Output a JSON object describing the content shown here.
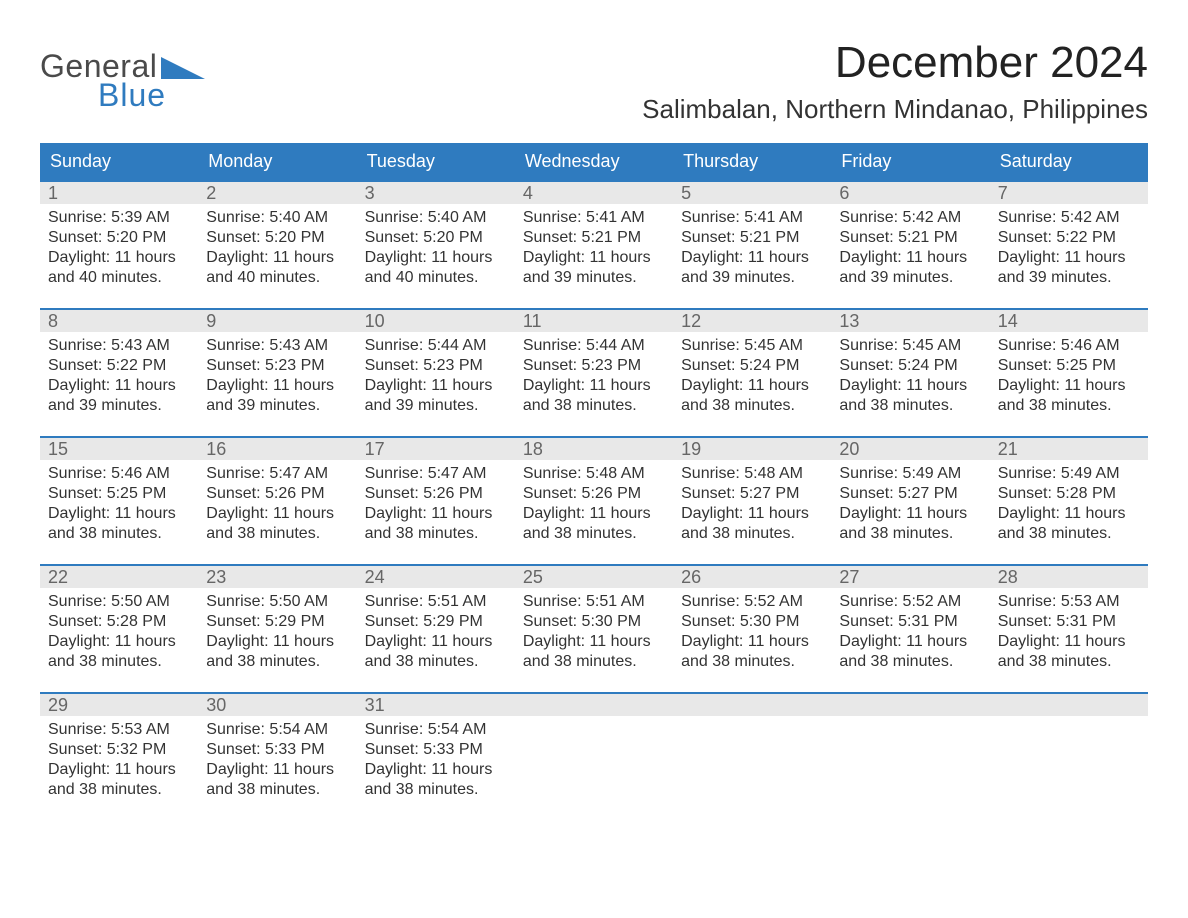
{
  "brand": {
    "word1": "General",
    "word2": "Blue",
    "word1_color": "#4a4a4a",
    "word2_color": "#2f7bbf",
    "triangle_color": "#2f7bbf"
  },
  "title": {
    "month": "December 2024",
    "location": "Salimbalan, Northern Mindanao, Philippines",
    "month_fontsize": 44,
    "location_fontsize": 26,
    "text_color": "#222222"
  },
  "calendar": {
    "header_bg": "#2f7bbf",
    "header_text_color": "#ffffff",
    "daynum_bg": "#e8e8e8",
    "daynum_color": "#666666",
    "row_border_color": "#2f7bbf",
    "body_text_color": "#333333",
    "columns": [
      "Sunday",
      "Monday",
      "Tuesday",
      "Wednesday",
      "Thursday",
      "Friday",
      "Saturday"
    ],
    "weeks": [
      [
        {
          "n": "1",
          "sunrise": "Sunrise: 5:39 AM",
          "sunset": "Sunset: 5:20 PM",
          "d1": "Daylight: 11 hours",
          "d2": "and 40 minutes."
        },
        {
          "n": "2",
          "sunrise": "Sunrise: 5:40 AM",
          "sunset": "Sunset: 5:20 PM",
          "d1": "Daylight: 11 hours",
          "d2": "and 40 minutes."
        },
        {
          "n": "3",
          "sunrise": "Sunrise: 5:40 AM",
          "sunset": "Sunset: 5:20 PM",
          "d1": "Daylight: 11 hours",
          "d2": "and 40 minutes."
        },
        {
          "n": "4",
          "sunrise": "Sunrise: 5:41 AM",
          "sunset": "Sunset: 5:21 PM",
          "d1": "Daylight: 11 hours",
          "d2": "and 39 minutes."
        },
        {
          "n": "5",
          "sunrise": "Sunrise: 5:41 AM",
          "sunset": "Sunset: 5:21 PM",
          "d1": "Daylight: 11 hours",
          "d2": "and 39 minutes."
        },
        {
          "n": "6",
          "sunrise": "Sunrise: 5:42 AM",
          "sunset": "Sunset: 5:21 PM",
          "d1": "Daylight: 11 hours",
          "d2": "and 39 minutes."
        },
        {
          "n": "7",
          "sunrise": "Sunrise: 5:42 AM",
          "sunset": "Sunset: 5:22 PM",
          "d1": "Daylight: 11 hours",
          "d2": "and 39 minutes."
        }
      ],
      [
        {
          "n": "8",
          "sunrise": "Sunrise: 5:43 AM",
          "sunset": "Sunset: 5:22 PM",
          "d1": "Daylight: 11 hours",
          "d2": "and 39 minutes."
        },
        {
          "n": "9",
          "sunrise": "Sunrise: 5:43 AM",
          "sunset": "Sunset: 5:23 PM",
          "d1": "Daylight: 11 hours",
          "d2": "and 39 minutes."
        },
        {
          "n": "10",
          "sunrise": "Sunrise: 5:44 AM",
          "sunset": "Sunset: 5:23 PM",
          "d1": "Daylight: 11 hours",
          "d2": "and 39 minutes."
        },
        {
          "n": "11",
          "sunrise": "Sunrise: 5:44 AM",
          "sunset": "Sunset: 5:23 PM",
          "d1": "Daylight: 11 hours",
          "d2": "and 38 minutes."
        },
        {
          "n": "12",
          "sunrise": "Sunrise: 5:45 AM",
          "sunset": "Sunset: 5:24 PM",
          "d1": "Daylight: 11 hours",
          "d2": "and 38 minutes."
        },
        {
          "n": "13",
          "sunrise": "Sunrise: 5:45 AM",
          "sunset": "Sunset: 5:24 PM",
          "d1": "Daylight: 11 hours",
          "d2": "and 38 minutes."
        },
        {
          "n": "14",
          "sunrise": "Sunrise: 5:46 AM",
          "sunset": "Sunset: 5:25 PM",
          "d1": "Daylight: 11 hours",
          "d2": "and 38 minutes."
        }
      ],
      [
        {
          "n": "15",
          "sunrise": "Sunrise: 5:46 AM",
          "sunset": "Sunset: 5:25 PM",
          "d1": "Daylight: 11 hours",
          "d2": "and 38 minutes."
        },
        {
          "n": "16",
          "sunrise": "Sunrise: 5:47 AM",
          "sunset": "Sunset: 5:26 PM",
          "d1": "Daylight: 11 hours",
          "d2": "and 38 minutes."
        },
        {
          "n": "17",
          "sunrise": "Sunrise: 5:47 AM",
          "sunset": "Sunset: 5:26 PM",
          "d1": "Daylight: 11 hours",
          "d2": "and 38 minutes."
        },
        {
          "n": "18",
          "sunrise": "Sunrise: 5:48 AM",
          "sunset": "Sunset: 5:26 PM",
          "d1": "Daylight: 11 hours",
          "d2": "and 38 minutes."
        },
        {
          "n": "19",
          "sunrise": "Sunrise: 5:48 AM",
          "sunset": "Sunset: 5:27 PM",
          "d1": "Daylight: 11 hours",
          "d2": "and 38 minutes."
        },
        {
          "n": "20",
          "sunrise": "Sunrise: 5:49 AM",
          "sunset": "Sunset: 5:27 PM",
          "d1": "Daylight: 11 hours",
          "d2": "and 38 minutes."
        },
        {
          "n": "21",
          "sunrise": "Sunrise: 5:49 AM",
          "sunset": "Sunset: 5:28 PM",
          "d1": "Daylight: 11 hours",
          "d2": "and 38 minutes."
        }
      ],
      [
        {
          "n": "22",
          "sunrise": "Sunrise: 5:50 AM",
          "sunset": "Sunset: 5:28 PM",
          "d1": "Daylight: 11 hours",
          "d2": "and 38 minutes."
        },
        {
          "n": "23",
          "sunrise": "Sunrise: 5:50 AM",
          "sunset": "Sunset: 5:29 PM",
          "d1": "Daylight: 11 hours",
          "d2": "and 38 minutes."
        },
        {
          "n": "24",
          "sunrise": "Sunrise: 5:51 AM",
          "sunset": "Sunset: 5:29 PM",
          "d1": "Daylight: 11 hours",
          "d2": "and 38 minutes."
        },
        {
          "n": "25",
          "sunrise": "Sunrise: 5:51 AM",
          "sunset": "Sunset: 5:30 PM",
          "d1": "Daylight: 11 hours",
          "d2": "and 38 minutes."
        },
        {
          "n": "26",
          "sunrise": "Sunrise: 5:52 AM",
          "sunset": "Sunset: 5:30 PM",
          "d1": "Daylight: 11 hours",
          "d2": "and 38 minutes."
        },
        {
          "n": "27",
          "sunrise": "Sunrise: 5:52 AM",
          "sunset": "Sunset: 5:31 PM",
          "d1": "Daylight: 11 hours",
          "d2": "and 38 minutes."
        },
        {
          "n": "28",
          "sunrise": "Sunrise: 5:53 AM",
          "sunset": "Sunset: 5:31 PM",
          "d1": "Daylight: 11 hours",
          "d2": "and 38 minutes."
        }
      ],
      [
        {
          "n": "29",
          "sunrise": "Sunrise: 5:53 AM",
          "sunset": "Sunset: 5:32 PM",
          "d1": "Daylight: 11 hours",
          "d2": "and 38 minutes."
        },
        {
          "n": "30",
          "sunrise": "Sunrise: 5:54 AM",
          "sunset": "Sunset: 5:33 PM",
          "d1": "Daylight: 11 hours",
          "d2": "and 38 minutes."
        },
        {
          "n": "31",
          "sunrise": "Sunrise: 5:54 AM",
          "sunset": "Sunset: 5:33 PM",
          "d1": "Daylight: 11 hours",
          "d2": "and 38 minutes."
        },
        null,
        null,
        null,
        null
      ]
    ]
  }
}
